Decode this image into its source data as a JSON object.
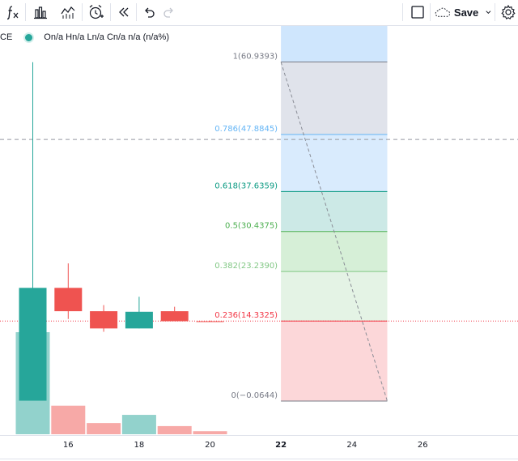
{
  "toolbar": {
    "indicators_icon": "fx-icon",
    "chart_type_icon": "bar-chart-icon",
    "compare_icon": "line-chart-icon",
    "alert_icon": "alarm-clock-icon",
    "replay_icon": "rewind-icon",
    "undo_icon": "undo-icon",
    "redo_icon": "redo-icon",
    "layout_icon": "square-icon",
    "save_label": "Save",
    "settings_icon": "gear-icon"
  },
  "legend": {
    "symbol": "CE",
    "ohlc": "On/a Hn/a Ln/a Cn/a n/a (n/a%)"
  },
  "chart_data": {
    "type": "candlestick",
    "x_ticks": [
      "16",
      "18",
      "20",
      "22",
      "24",
      "26"
    ],
    "candles": [
      {
        "x": 15,
        "open": 0,
        "high": 60.9,
        "low": 0,
        "close": 20.3,
        "color": "up"
      },
      {
        "x": 16,
        "open": 20.3,
        "high": 24.7,
        "low": 14.7,
        "close": 16.1,
        "color": "down"
      },
      {
        "x": 17,
        "open": 16.1,
        "high": 17.2,
        "low": 12.4,
        "close": 13.0,
        "color": "down"
      },
      {
        "x": 18,
        "open": 13.0,
        "high": 18.7,
        "low": 13.0,
        "close": 16.0,
        "color": "up"
      },
      {
        "x": 19,
        "open": 16.1,
        "high": 16.9,
        "low": 14.3,
        "close": 14.3,
        "color": "down"
      },
      {
        "x": 20,
        "open": 14.3,
        "high": 14.4,
        "low": 14.3,
        "close": 14.3,
        "color": "down"
      }
    ],
    "volume": [
      {
        "x": 15,
        "value": 100,
        "color": "up"
      },
      {
        "x": 16,
        "value": 28,
        "color": "down"
      },
      {
        "x": 17,
        "value": 11,
        "color": "down"
      },
      {
        "x": 18,
        "value": 19,
        "color": "up"
      },
      {
        "x": 19,
        "value": 8,
        "color": "down"
      },
      {
        "x": 20,
        "value": 3,
        "color": "down"
      }
    ],
    "fibonacci": {
      "start_x": 22,
      "end_x": 25,
      "levels": [
        {
          "label": "1(60.9393)",
          "value": 60.9393,
          "color": "#787b86",
          "fill": "#e0e3eb"
        },
        {
          "label": "0.786(47.8845)",
          "value": 47.8845,
          "color": "#64b5f6",
          "fill": "#d9ebfd"
        },
        {
          "label": "0.618(37.6359)",
          "value": 37.6359,
          "color": "#089981",
          "fill": "#cce9e6"
        },
        {
          "label": "0.5(30.4375)",
          "value": 30.4375,
          "color": "#4caf50",
          "fill": "#d6efd7"
        },
        {
          "label": "0.382(23.2390)",
          "value": 23.239,
          "color": "#81c784",
          "fill": "#e4f3e5"
        },
        {
          "label": "0.236(14.3325)",
          "value": 14.3325,
          "color": "#f23645",
          "fill": "#fcd7d9"
        },
        {
          "label": "0(−0.0644)",
          "value": -0.0644,
          "color": "#787b86",
          "fill": null
        }
      ],
      "top_fill": "#cfe6fd"
    },
    "crosshair_price": 47.0,
    "last_price": 14.3325
  }
}
